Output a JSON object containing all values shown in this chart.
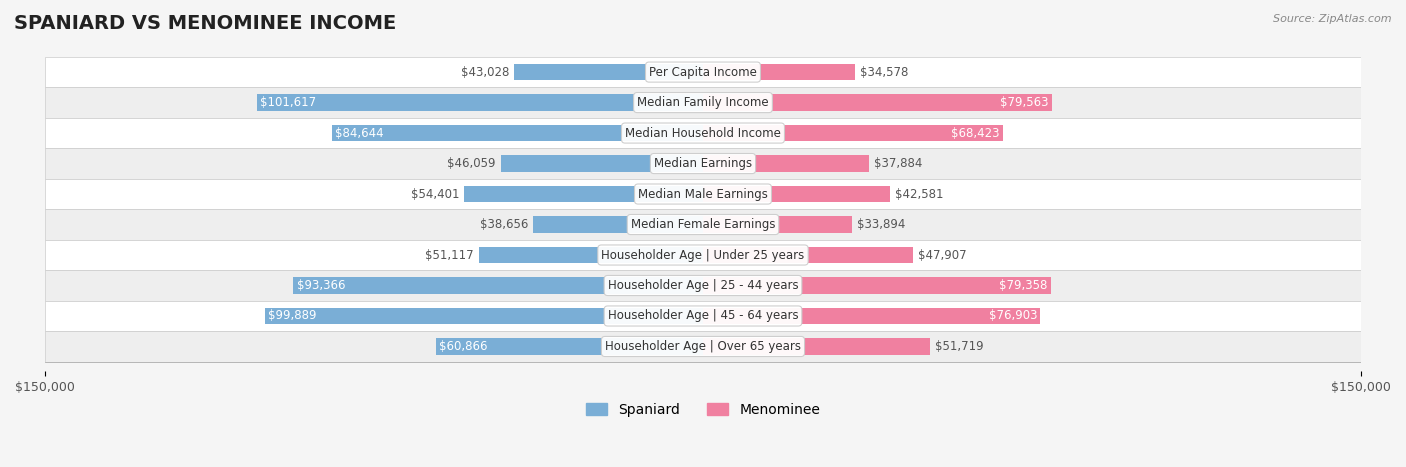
{
  "title": "SPANIARD VS MENOMINEE INCOME",
  "source": "Source: ZipAtlas.com",
  "categories": [
    "Per Capita Income",
    "Median Family Income",
    "Median Household Income",
    "Median Earnings",
    "Median Male Earnings",
    "Median Female Earnings",
    "Householder Age | Under 25 years",
    "Householder Age | 25 - 44 years",
    "Householder Age | 45 - 64 years",
    "Householder Age | Over 65 years"
  ],
  "spaniard_values": [
    43028,
    101617,
    84644,
    46059,
    54401,
    38656,
    51117,
    93366,
    99889,
    60866
  ],
  "menominee_values": [
    34578,
    79563,
    68423,
    37884,
    42581,
    33894,
    47907,
    79358,
    76903,
    51719
  ],
  "spaniard_labels": [
    "$43,028",
    "$101,617",
    "$84,644",
    "$46,059",
    "$54,401",
    "$38,656",
    "$51,117",
    "$93,366",
    "$99,889",
    "$60,866"
  ],
  "menominee_labels": [
    "$34,578",
    "$79,563",
    "$68,423",
    "$37,884",
    "$42,581",
    "$33,894",
    "$47,907",
    "$79,358",
    "$76,903",
    "$51,719"
  ],
  "spaniard_color": "#7aaed6",
  "menominee_color": "#f080a0",
  "spaniard_color_dark": "#5b9ec9",
  "menominee_color_dark": "#e8607a",
  "max_value": 150000,
  "bar_height": 0.55,
  "background_color": "#f5f5f5",
  "row_bg_light": "#ffffff",
  "row_bg_dark": "#eeeeee",
  "title_fontsize": 14,
  "label_fontsize": 8.5,
  "tick_fontsize": 9,
  "legend_fontsize": 10
}
